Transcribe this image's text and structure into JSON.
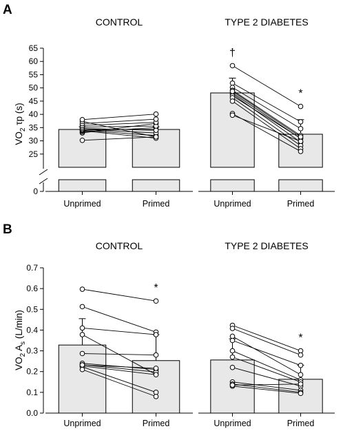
{
  "panels": {
    "A": {
      "letter": "A",
      "ylabel_main": "VO",
      "ylabel_sub": "2",
      "ylabel_rest": " τp (s)",
      "break_tick": "0"
    },
    "B": {
      "letter": "B",
      "ylabel_main": "VO",
      "ylabel_sub": "2",
      "ylabel_rest": " A",
      "ylabel_sub2": "s",
      "ylabel_rest2": " (L/min)"
    }
  },
  "chart_data": [
    {
      "type": "bar",
      "panel": "A",
      "group_title": "CONTROL",
      "categories": [
        "Unprimed",
        "Primed"
      ],
      "values": [
        34.3,
        34.3
      ],
      "error_up": [
        1.0,
        1.0
      ],
      "ylim": [
        20,
        65
      ],
      "yticks": [
        25,
        30,
        35,
        40,
        45,
        50,
        55,
        60,
        65
      ],
      "axis_break": true,
      "annotations": [
        "",
        ""
      ],
      "subjects": [
        [
          30.2,
          31.5
        ],
        [
          33.0,
          36.6
        ],
        [
          33.4,
          35.0
        ],
        [
          33.8,
          31.0
        ],
        [
          34.0,
          32.0
        ],
        [
          34.3,
          33.0
        ],
        [
          34.7,
          34.0
        ],
        [
          35.2,
          35.6
        ],
        [
          35.8,
          37.0
        ],
        [
          36.5,
          38.2
        ],
        [
          37.3,
          31.5
        ],
        [
          38.0,
          40.1
        ]
      ]
    },
    {
      "type": "bar",
      "panel": "A",
      "group_title": "TYPE 2 DIABETES",
      "categories": [
        "Unprimed",
        "Primed"
      ],
      "values": [
        48.1,
        32.5
      ],
      "error_up": [
        5.6,
        5.5
      ],
      "ylim": [
        20,
        65
      ],
      "yticks": [
        25,
        30,
        35,
        40,
        45,
        50,
        55,
        60,
        65
      ],
      "axis_break": true,
      "annotations": [
        "†",
        "*"
      ],
      "subjects": [
        [
          58.4,
          43.0
        ],
        [
          51.8,
          37.2
        ],
        [
          50.2,
          34.6
        ],
        [
          49.1,
          32.0
        ],
        [
          48.1,
          30.9
        ],
        [
          47.6,
          29.5
        ],
        [
          47.0,
          31.0
        ],
        [
          46.3,
          28.2
        ],
        [
          45.0,
          27.0
        ],
        [
          40.3,
          26.0
        ],
        [
          39.7,
          29.8
        ],
        [
          48.7,
          31.5
        ]
      ]
    },
    {
      "type": "bar",
      "panel": "B",
      "group_title": "CONTROL",
      "categories": [
        "Unprimed",
        "Primed"
      ],
      "values": [
        0.328,
        0.253
      ],
      "error_up": [
        0.127,
        0.125
      ],
      "ylim": [
        0.0,
        0.7
      ],
      "yticks": [
        0.0,
        0.1,
        0.2,
        0.3,
        0.4,
        0.5,
        0.6,
        0.7
      ],
      "axis_break": false,
      "annotations": [
        "",
        "*"
      ],
      "subjects": [
        [
          0.597,
          0.54
        ],
        [
          0.513,
          0.39
        ],
        [
          0.41,
          0.378
        ],
        [
          0.378,
          0.186
        ],
        [
          0.287,
          0.28
        ],
        [
          0.24,
          0.21
        ],
        [
          0.233,
          0.198
        ],
        [
          0.227,
          0.185
        ],
        [
          0.223,
          0.1
        ],
        [
          0.21,
          0.08
        ],
        [
          0.232,
          0.216
        ]
      ]
    },
    {
      "type": "bar",
      "panel": "B",
      "group_title": "TYPE 2 DIABETES",
      "categories": [
        "Unprimed",
        "Primed"
      ],
      "values": [
        0.256,
        0.163
      ],
      "error_up": [
        0.102,
        0.068
      ],
      "ylim": [
        0.0,
        0.7
      ],
      "yticks": [
        0.0,
        0.1,
        0.2,
        0.3,
        0.4,
        0.5,
        0.6,
        0.7
      ],
      "axis_break": false,
      "annotations": [
        "",
        "*"
      ],
      "subjects": [
        [
          0.423,
          0.3
        ],
        [
          0.408,
          0.28
        ],
        [
          0.37,
          0.185
        ],
        [
          0.35,
          0.23
        ],
        [
          0.3,
          0.16
        ],
        [
          0.27,
          0.15
        ],
        [
          0.22,
          0.13
        ],
        [
          0.15,
          0.11
        ],
        [
          0.14,
          0.1
        ],
        [
          0.13,
          0.095
        ],
        [
          0.135,
          0.14
        ]
      ]
    }
  ]
}
